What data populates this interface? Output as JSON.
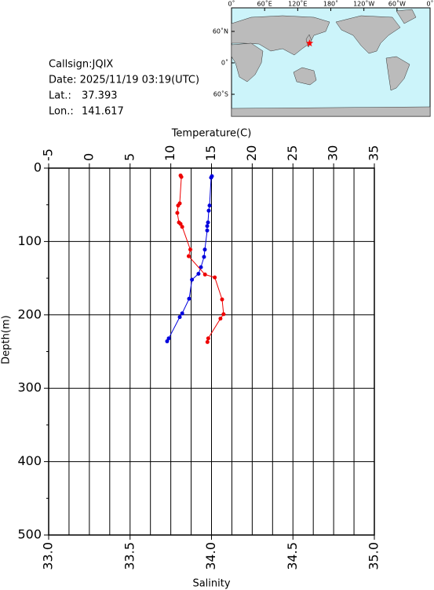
{
  "info": {
    "callsign": "Callsign:JQIX",
    "date": "Date:  2025/11/19 03:19(UTC)",
    "lat_label": "Lat.:",
    "lat": 37.393,
    "lon_label": "Lon.:",
    "lon": 141.617
  },
  "map": {
    "lon_labels": [
      "0˚",
      "60˚E",
      "120˚E",
      "180˚",
      "120˚W",
      "60˚W",
      "0˚"
    ],
    "lat_labels": [
      "60˚N",
      "0˚",
      "60˚S"
    ]
  },
  "chart_data": {
    "type": "profile",
    "xlabel": "Temperature(C)",
    "x2label": "Salinity",
    "ylabel": "Depth(m)",
    "xlim": [
      -5,
      35
    ],
    "xticks": [
      -5,
      0,
      5,
      10,
      15,
      20,
      25,
      30,
      35
    ],
    "x2lim": [
      33,
      35
    ],
    "x2ticks": [
      {
        "value": 33,
        "label": "33.0"
      },
      {
        "value": 33.5,
        "label": "33.5"
      },
      {
        "value": 34,
        "label": "34.0"
      },
      {
        "value": 34.5,
        "label": "34.5"
      },
      {
        "value": 35,
        "label": "35.0"
      }
    ],
    "ylim": [
      0,
      500
    ],
    "y_inverted": true,
    "yticks": [
      0,
      100,
      200,
      300,
      400,
      500
    ],
    "yminor": [
      50,
      150,
      250,
      350,
      450
    ],
    "xgrid": [
      -5,
      -2.5,
      0,
      2.5,
      5,
      7.5,
      10,
      12.5,
      15,
      17.5,
      20,
      22.5,
      25,
      27.5,
      30,
      32.5,
      35
    ],
    "grid": true,
    "series": [
      {
        "color": "#0000dd",
        "axis": "x",
        "x": [
          15.05,
          14.95,
          14.76,
          14.66,
          14.57,
          14.47,
          14.47,
          14.18,
          14.08,
          13.7,
          13.4,
          12.6,
          12.25,
          11.4,
          11.1,
          9.75,
          9.55
        ],
        "y": [
          11,
          13,
          51,
          58,
          74,
          79,
          85,
          111,
          121,
          135,
          144,
          152,
          178,
          198,
          203,
          232,
          236
        ]
      },
      {
        "color": "#ee0000",
        "axis": "x2",
        "x": [
          33.81,
          33.815,
          33.805,
          33.795,
          33.79,
          33.8,
          33.81,
          33.82,
          33.87,
          33.86,
          33.96,
          34.02,
          34.065,
          34.074,
          34.055,
          33.98,
          33.975
        ],
        "y": [
          10,
          12,
          48,
          51,
          61,
          74,
          76,
          80,
          111,
          120,
          145,
          149,
          179,
          199,
          205,
          232,
          237
        ]
      }
    ]
  }
}
